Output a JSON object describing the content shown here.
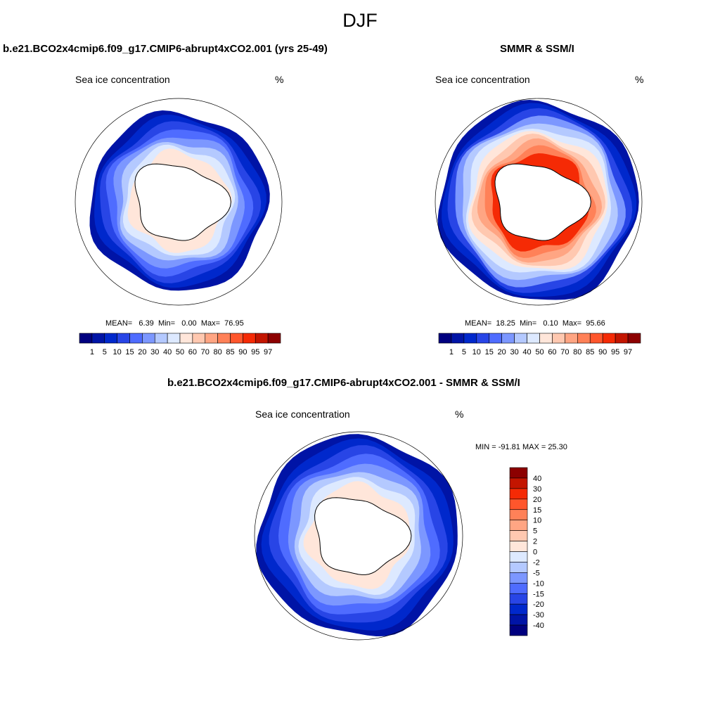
{
  "page_title": "DJF",
  "colors": {
    "palette_concentration": [
      "#00007f",
      "#0014a6",
      "#0028cc",
      "#2845e6",
      "#4f6cff",
      "#7c97ff",
      "#b4c9ff",
      "#dde9ff",
      "#ffe6da",
      "#ffc8b0",
      "#ffa583",
      "#ff8158",
      "#ff562c",
      "#f52a05",
      "#c31500",
      "#8c0000"
    ],
    "palette_difference": [
      "#00007f",
      "#0014a6",
      "#0028cc",
      "#2845e6",
      "#4f6cff",
      "#7c97ff",
      "#b4c9ff",
      "#dde9ff",
      "#ffe6da",
      "#ffc8b0",
      "#ffa583",
      "#ff8158",
      "#ff562c",
      "#f52a05",
      "#c31500",
      "#8c0000"
    ],
    "land": "#ffffff",
    "coast": "#000000"
  },
  "chart_data": [
    {
      "type": "heatmap",
      "projection": "polar-stereographic-south",
      "title": "b.e21.BCO2x4cmip6.f09_g17.CMIP6-abrupt4xCO2.001 (yrs 25-49)",
      "left_label": "Sea ice concentration",
      "right_label": "%",
      "stats": {
        "mean_label": "MEAN=",
        "mean": "6.39",
        "min_label": "Min=",
        "min": "0.00",
        "max_label": "Max=",
        "max": "76.95"
      },
      "colorbar": {
        "orientation": "horizontal",
        "levels": [
          "1",
          "5",
          "10",
          "15",
          "20",
          "30",
          "40",
          "50",
          "60",
          "70",
          "80",
          "85",
          "90",
          "95",
          "97"
        ]
      },
      "ice_band": {
        "outer_extent": "mid",
        "values": [
          1,
          5,
          10,
          15,
          20,
          30,
          40,
          50
        ]
      }
    },
    {
      "type": "heatmap",
      "projection": "polar-stereographic-south",
      "title": "SMMR & SSM/I",
      "left_label": "Sea ice concentration",
      "right_label": "%",
      "stats": {
        "mean_label": "MEAN=",
        "mean": "18.25",
        "min_label": "Min=",
        "min": "0.10",
        "max_label": "Max=",
        "max": "95.66"
      },
      "colorbar": {
        "orientation": "horizontal",
        "levels": [
          "1",
          "5",
          "10",
          "15",
          "20",
          "30",
          "40",
          "50",
          "60",
          "70",
          "80",
          "85",
          "90",
          "95",
          "97"
        ]
      },
      "ice_band": {
        "outer_extent": "wide",
        "values": [
          1,
          5,
          10,
          20,
          30,
          40,
          50,
          60,
          70,
          80,
          90
        ]
      }
    },
    {
      "type": "heatmap",
      "projection": "polar-stereographic-south",
      "title": "b.e21.BCO2x4cmip6.f09_g17.CMIP6-abrupt4xCO2.001 - SMMR & SSM/I",
      "left_label": "Sea ice concentration",
      "right_label": "%",
      "stats_text": "MIN = -91.81 MAX =  25.30",
      "colorbar": {
        "orientation": "vertical",
        "levels": [
          "40",
          "30",
          "20",
          "15",
          "10",
          "5",
          "2",
          "0",
          "-2",
          "-5",
          "-10",
          "-15",
          "-20",
          "-30",
          "-40"
        ]
      },
      "ice_band": {
        "outer_extent": "wide",
        "values": [
          -40,
          -30,
          -20,
          -15,
          -10,
          -5,
          -2,
          0
        ]
      }
    }
  ]
}
